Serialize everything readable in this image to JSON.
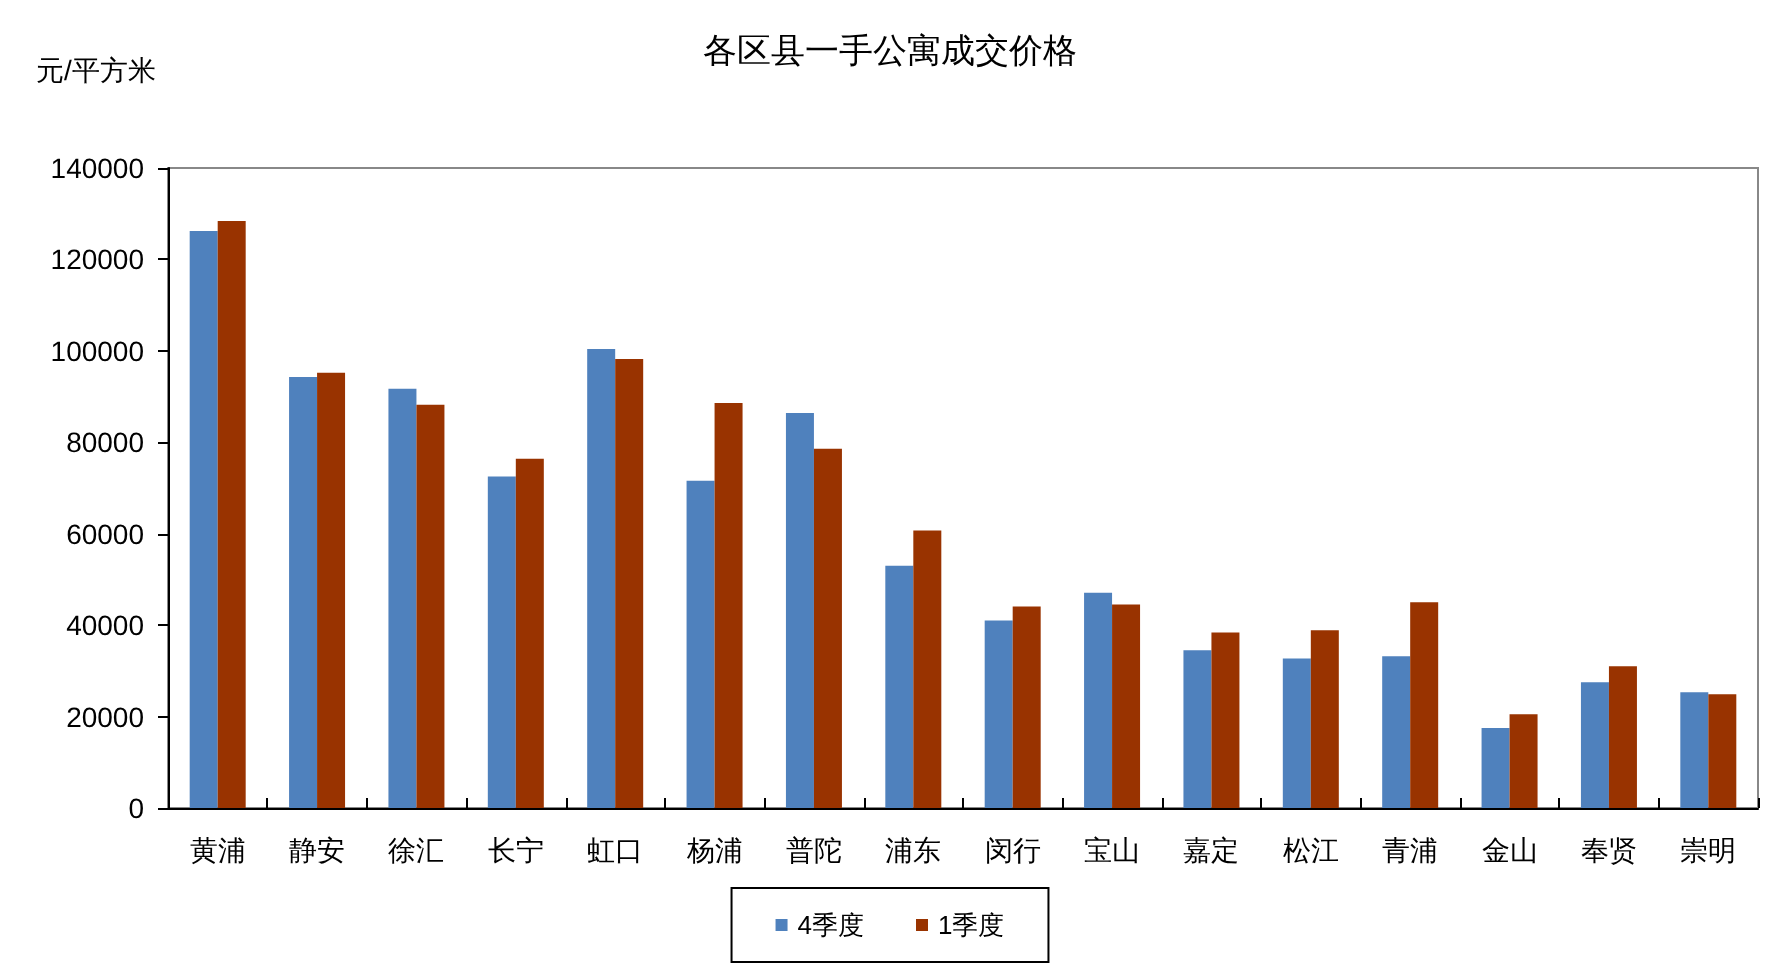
{
  "chart_data": {
    "type": "bar",
    "title": "各区县一手公寓成交价格",
    "ylabel": "元/平方米",
    "categories": [
      "黄浦",
      "静安",
      "徐汇",
      "长宁",
      "虹口",
      "杨浦",
      "普陀",
      "浦东",
      "闵行",
      "宝山",
      "嘉定",
      "松江",
      "青浦",
      "金山",
      "奉贤",
      "崇明"
    ],
    "series": [
      {
        "name": "4季度",
        "color": "#4f81bd",
        "values": [
          126200,
          94300,
          91700,
          72500,
          100400,
          71600,
          86400,
          53000,
          41000,
          47100,
          34500,
          32700,
          33200,
          17500,
          27500,
          25300
        ]
      },
      {
        "name": "1季度",
        "color": "#993300",
        "values": [
          128400,
          95200,
          88200,
          76400,
          98200,
          88600,
          78600,
          60700,
          44100,
          44500,
          38400,
          38900,
          45000,
          20500,
          31000,
          24900
        ]
      }
    ],
    "ylim": [
      0,
      140000
    ],
    "yticks": [
      0,
      20000,
      40000,
      60000,
      80000,
      100000,
      120000,
      140000
    ],
    "grid": false,
    "legend": "bottom"
  }
}
